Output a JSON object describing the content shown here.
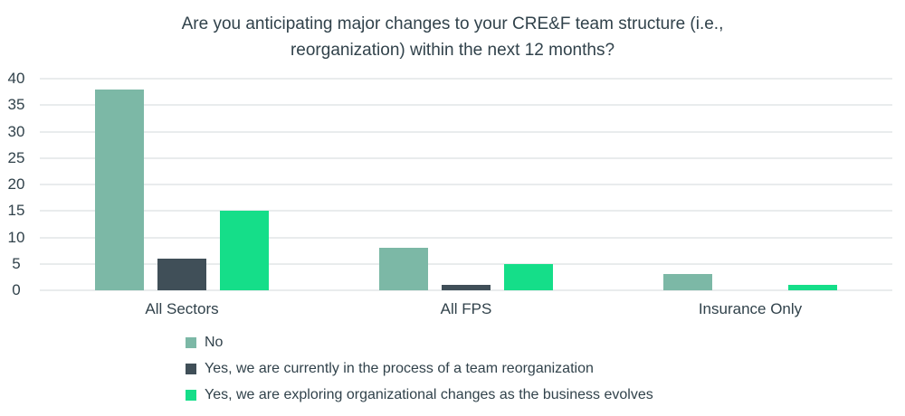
{
  "chart_data": {
    "type": "bar",
    "title": "Are you anticipating major changes to your CRE&F team structure (i.e., reorganization) within the next 12 months?",
    "categories": [
      "All Sectors",
      "All FPS",
      "Insurance Only"
    ],
    "series": [
      {
        "name": "No",
        "color": "#7cb8a6",
        "values": [
          38,
          8,
          3
        ]
      },
      {
        "name": "Yes, we are currently in the process of a team reorganization",
        "color": "#404f58",
        "values": [
          6,
          1,
          0
        ]
      },
      {
        "name": "Yes, we are exploring organizational changes as the business evolves",
        "color": "#15de89",
        "values": [
          15,
          5,
          1
        ]
      }
    ],
    "ylim": [
      0,
      40
    ],
    "yticks": [
      0,
      5,
      10,
      15,
      20,
      25,
      30,
      35,
      40
    ],
    "xlabel": "",
    "ylabel": "",
    "grid": true,
    "legend_position": "bottom-left",
    "colors": {
      "text": "#31424b",
      "grid": "#e9eced",
      "background": "#ffffff"
    }
  }
}
